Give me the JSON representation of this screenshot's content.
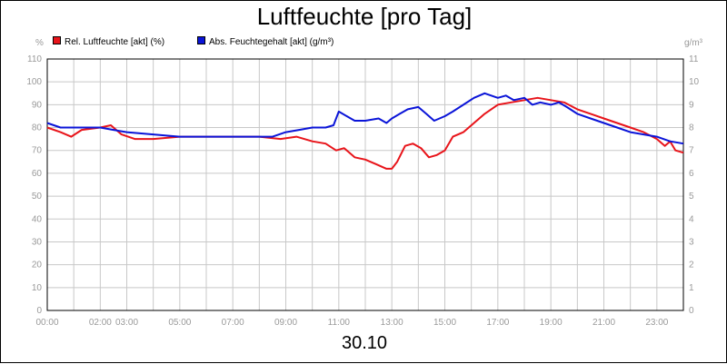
{
  "chart_data": {
    "type": "line",
    "title": "Luftfeuchte [pro Tag]",
    "date_label": "30.10",
    "left_unit": "%",
    "right_unit": "g/m³",
    "x_ticks": [
      "00:00",
      "02:00",
      "03:00",
      "05:00",
      "07:00",
      "09:00",
      "11:00",
      "13:00",
      "15:00",
      "17:00",
      "19:00",
      "21:00",
      "23:00"
    ],
    "x_tick_hours": [
      0,
      2,
      3,
      5,
      7,
      9,
      11,
      13,
      15,
      17,
      19,
      21,
      23
    ],
    "xlim": [
      0,
      24
    ],
    "y_left_ticks": [
      "0",
      "10",
      "20",
      "30",
      "40",
      "50",
      "60",
      "70",
      "80",
      "90",
      "100",
      "110"
    ],
    "y_right_ticks": [
      "0",
      "1",
      "2",
      "3",
      "4",
      "5",
      "6",
      "7",
      "8",
      "9",
      "10",
      "11"
    ],
    "ylim_left": [
      0,
      110
    ],
    "ylim_right": [
      0,
      11
    ],
    "grid": true,
    "legend_position": "top-left",
    "series": [
      {
        "name": "Rel. Luftfeuchte [akt] (%)",
        "color": "#e8141a",
        "axis": "left",
        "x": [
          0,
          0.5,
          0.9,
          1.3,
          2.0,
          2.4,
          2.8,
          3.3,
          4.0,
          5.0,
          6.0,
          7.0,
          8.0,
          8.8,
          9.4,
          10.0,
          10.5,
          10.9,
          11.2,
          11.6,
          12.0,
          12.4,
          12.8,
          13.0,
          13.2,
          13.5,
          13.8,
          14.1,
          14.4,
          14.7,
          15.0,
          15.3,
          15.7,
          16.1,
          16.5,
          17.0,
          17.5,
          18.0,
          18.5,
          19.0,
          19.5,
          20.0,
          20.5,
          21.0,
          21.5,
          22.0,
          22.5,
          23.0,
          23.3,
          23.5,
          23.7,
          24.0
        ],
        "y": [
          80,
          78,
          76,
          79,
          80,
          81,
          77,
          75,
          75,
          76,
          76,
          76,
          76,
          75,
          76,
          74,
          73,
          70,
          71,
          67,
          66,
          64,
          62,
          62,
          65,
          72,
          73,
          71,
          67,
          68,
          70,
          76,
          78,
          82,
          86,
          90,
          91,
          92,
          93,
          92,
          91,
          88,
          86,
          84,
          82,
          80,
          78,
          75,
          72,
          74,
          70,
          69
        ]
      },
      {
        "name": "Abs. Feuchtegehalt [akt] (g/m³)",
        "color": "#0a14d8",
        "axis": "right",
        "x": [
          0,
          0.5,
          1.0,
          1.5,
          2.0,
          2.5,
          3.0,
          4.0,
          5.0,
          6.0,
          7.0,
          8.0,
          8.5,
          9.0,
          9.5,
          10.0,
          10.5,
          10.8,
          11.0,
          11.3,
          11.6,
          12.0,
          12.5,
          12.8,
          13.0,
          13.3,
          13.6,
          14.0,
          14.3,
          14.6,
          15.0,
          15.3,
          15.7,
          16.1,
          16.5,
          17.0,
          17.3,
          17.6,
          18.0,
          18.3,
          18.6,
          19.0,
          19.3,
          19.6,
          20.0,
          20.5,
          21.0,
          21.5,
          22.0,
          22.5,
          23.0,
          23.5,
          24.0
        ],
        "y": [
          8.2,
          8.0,
          8.0,
          8.0,
          8.0,
          7.9,
          7.8,
          7.7,
          7.6,
          7.6,
          7.6,
          7.6,
          7.6,
          7.8,
          7.9,
          8.0,
          8.0,
          8.1,
          8.7,
          8.5,
          8.3,
          8.3,
          8.4,
          8.2,
          8.4,
          8.6,
          8.8,
          8.9,
          8.6,
          8.3,
          8.5,
          8.7,
          9.0,
          9.3,
          9.5,
          9.3,
          9.4,
          9.2,
          9.3,
          9.0,
          9.1,
          9.0,
          9.1,
          8.9,
          8.6,
          8.4,
          8.2,
          8.0,
          7.8,
          7.7,
          7.6,
          7.4,
          7.3
        ]
      }
    ]
  }
}
